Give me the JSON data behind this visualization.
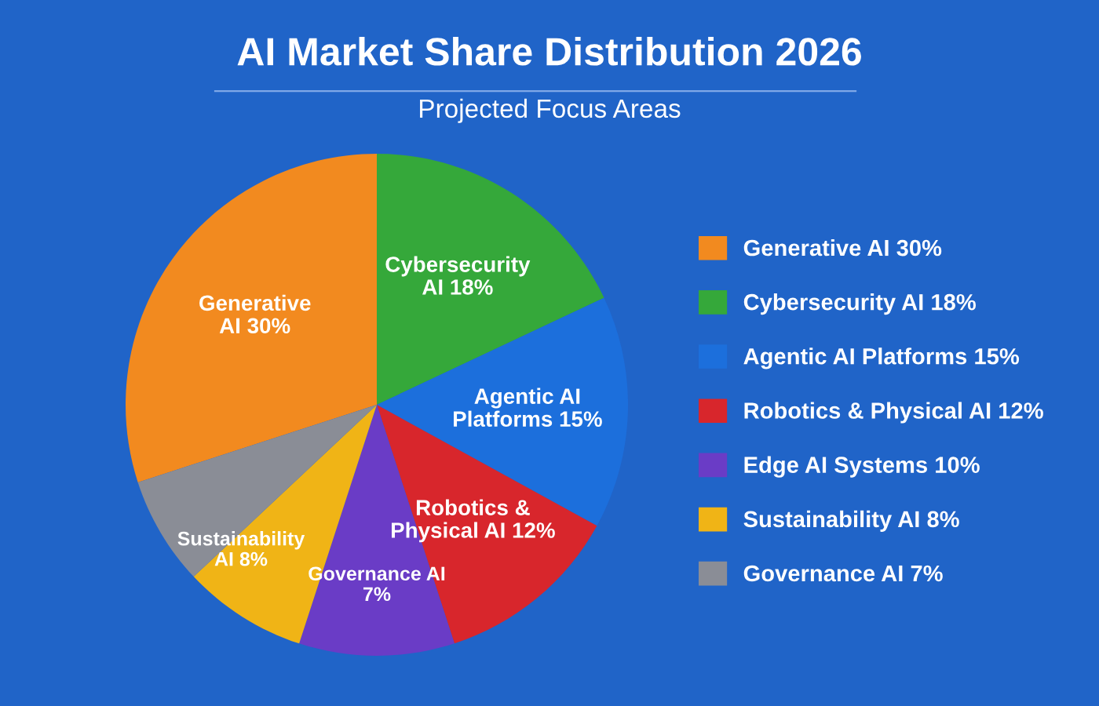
{
  "chart_data": {
    "type": "pie",
    "title": "AI Market Share Distribution 2026",
    "subtitle": "Projected Focus Areas",
    "categories": [
      "Generative AI 30%",
      "Cybersecurity AI 18%",
      "Agentic AI Platforms 15%",
      "Robotics & Physical AI 12%",
      "Edge AI Systems 10%",
      "Sustainability AI 8%",
      "Governance AI 7%"
    ],
    "values": [
      30,
      18,
      15,
      12,
      10,
      8,
      7
    ],
    "colors": [
      "#f28a1f",
      "#35a83a",
      "#1c6fdc",
      "#d8262c",
      "#6a3cc6",
      "#f0b416",
      "#8a8d96"
    ],
    "value_labels": [
      "Generative\nAI 30%",
      "Cybersecurity\nAI 18%",
      "Agentic AI\nPlatforms 15%",
      "Robotics &\nPhysical AI 12%",
      "Governance AI\n7%",
      "Sustainability\nAI 8%",
      null
    ],
    "legend": "right"
  }
}
